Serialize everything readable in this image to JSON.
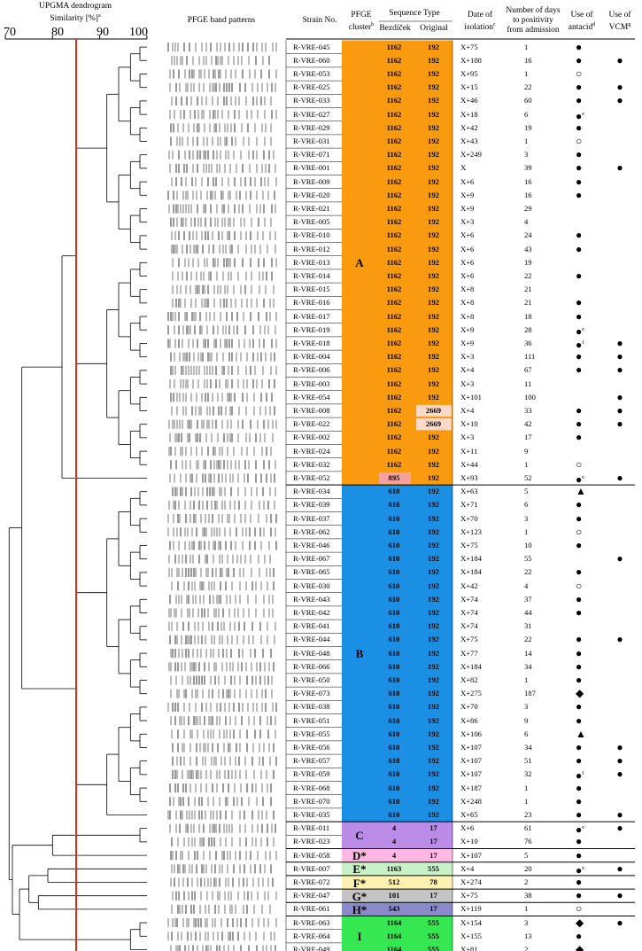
{
  "header": {
    "dendrogram_title": "UPGMA dendrogram",
    "similarity_label": "Similarity [%]",
    "similarity_sup": "a",
    "axis_ticks": [
      "70",
      "80",
      "90",
      "100"
    ],
    "pfge_bands": "PFGE band patterns",
    "strain_no": "Strain No.",
    "pfge_cluster_line1": "PFGE",
    "pfge_cluster_line2": "cluster",
    "pfge_cluster_sup": "b",
    "sequence_type": "Sequence Type",
    "bezdicek": "Bezdíček",
    "original": "Original",
    "date_line1": "Date of",
    "date_line2": "isolation",
    "date_sup": "c",
    "days_line1": "Number of days",
    "days_line2": "to positivity",
    "days_line3": "from admission",
    "antacid_line1": "Use of",
    "antacid_line2": "antacid",
    "antacid_sup": "d",
    "vcm_line1": "Use of",
    "vcm_line2": "VCM",
    "vcm_sup": "g"
  },
  "colors": {
    "A": "#f99a0f",
    "B": "#1a8fe3",
    "C": "#bb8be8",
    "D": "#ffb8e3",
    "E": "#c8f1c8",
    "F": "#fff2b0",
    "G": "#c4c4c4",
    "H": "#8a8acb",
    "I": "#35e851",
    "ST895": "#f6a0a0",
    "ST2669": "#ffd9c7",
    "cutoff_line": "#e02a1a"
  },
  "clusters": [
    {
      "label": "A",
      "color_key": "A"
    },
    {
      "label": "B",
      "color_key": "B"
    },
    {
      "label": "C",
      "color_key": "C"
    },
    {
      "label": "D*",
      "color_key": "D"
    },
    {
      "label": "E*",
      "color_key": "E"
    },
    {
      "label": "F*",
      "color_key": "F"
    },
    {
      "label": "G*",
      "color_key": "G"
    },
    {
      "label": "H*",
      "color_key": "H"
    },
    {
      "label": "I",
      "color_key": "I"
    }
  ],
  "rows": [
    {
      "strain": "R-VRE-045",
      "cluster": "A",
      "bez": "1162",
      "orig": "192",
      "date": "X+75",
      "days": "1",
      "antacid": "●",
      "antacid_sup": "",
      "vcm": ""
    },
    {
      "strain": "R-VRE-060",
      "cluster": "A",
      "bez": "1162",
      "orig": "192",
      "date": "X+108",
      "days": "16",
      "antacid": "●",
      "antacid_sup": "",
      "vcm": "●"
    },
    {
      "strain": "R-VRE-053",
      "cluster": "A",
      "bez": "1162",
      "orig": "192",
      "date": "X+95",
      "days": "1",
      "antacid": "○",
      "antacid_sup": "",
      "vcm": ""
    },
    {
      "strain": "R-VRE-025",
      "cluster": "A",
      "bez": "1162",
      "orig": "192",
      "date": "X+15",
      "days": "22",
      "antacid": "●",
      "antacid_sup": "",
      "vcm": "●"
    },
    {
      "strain": "R-VRE-033",
      "cluster": "A",
      "bez": "1162",
      "orig": "192",
      "date": "X+46",
      "days": "60",
      "antacid": "●",
      "antacid_sup": "",
      "vcm": "●"
    },
    {
      "strain": "R-VRE-027",
      "cluster": "A",
      "bez": "1162",
      "orig": "192",
      "date": "X+18",
      "days": "6",
      "antacid": "●",
      "antacid_sup": "e",
      "vcm": ""
    },
    {
      "strain": "R-VRE-029",
      "cluster": "A",
      "bez": "1162",
      "orig": "192",
      "date": "X+42",
      "days": "19",
      "antacid": "●",
      "antacid_sup": "",
      "vcm": ""
    },
    {
      "strain": "R-VRE-031",
      "cluster": "A",
      "bez": "1162",
      "orig": "192",
      "date": "X+43",
      "days": "1",
      "antacid": "○",
      "antacid_sup": "",
      "vcm": ""
    },
    {
      "strain": "R-VRE-071",
      "cluster": "A",
      "bez": "1162",
      "orig": "192",
      "date": "X+249",
      "days": "3",
      "antacid": "●",
      "antacid_sup": "",
      "vcm": ""
    },
    {
      "strain": "R-VRE-001",
      "cluster": "A",
      "bez": "1162",
      "orig": "192",
      "date": "X",
      "days": "39",
      "antacid": "●",
      "antacid_sup": "",
      "vcm": "●"
    },
    {
      "strain": "R-VRE-009",
      "cluster": "A",
      "bez": "1162",
      "orig": "192",
      "date": "X+6",
      "days": "16",
      "antacid": "●",
      "antacid_sup": "",
      "vcm": ""
    },
    {
      "strain": "R-VRE-020",
      "cluster": "A",
      "bez": "1162",
      "orig": "192",
      "date": "X+9",
      "days": "16",
      "antacid": "●",
      "antacid_sup": "",
      "vcm": ""
    },
    {
      "strain": "R-VRE-021",
      "cluster": "A",
      "bez": "1162",
      "orig": "192",
      "date": "X+9",
      "days": "29",
      "antacid": "",
      "antacid_sup": "",
      "vcm": ""
    },
    {
      "strain": "R-VRE-005",
      "cluster": "A",
      "bez": "1162",
      "orig": "192",
      "date": "X+3",
      "days": "4",
      "antacid": "",
      "antacid_sup": "",
      "vcm": ""
    },
    {
      "strain": "R-VRE-010",
      "cluster": "A",
      "bez": "1162",
      "orig": "192",
      "date": "X+6",
      "days": "24",
      "antacid": "●",
      "antacid_sup": "",
      "vcm": ""
    },
    {
      "strain": "R-VRE-012",
      "cluster": "A",
      "bez": "1162",
      "orig": "192",
      "date": "X+6",
      "days": "43",
      "antacid": "●",
      "antacid_sup": "",
      "vcm": ""
    },
    {
      "strain": "R-VRE-013",
      "cluster": "A",
      "bez": "1162",
      "orig": "192",
      "date": "X+6",
      "days": "19",
      "antacid": "",
      "antacid_sup": "",
      "vcm": ""
    },
    {
      "strain": "R-VRE-014",
      "cluster": "A",
      "bez": "1162",
      "orig": "192",
      "date": "X+6",
      "days": "22",
      "antacid": "●",
      "antacid_sup": "",
      "vcm": ""
    },
    {
      "strain": "R-VRE-015",
      "cluster": "A",
      "bez": "1162",
      "orig": "192",
      "date": "X+8",
      "days": "21",
      "antacid": "",
      "antacid_sup": "",
      "vcm": ""
    },
    {
      "strain": "R-VRE-016",
      "cluster": "A",
      "bez": "1162",
      "orig": "192",
      "date": "X+8",
      "days": "21",
      "antacid": "●",
      "antacid_sup": "",
      "vcm": ""
    },
    {
      "strain": "R-VRE-017",
      "cluster": "A",
      "bez": "1162",
      "orig": "192",
      "date": "X+8",
      "days": "18",
      "antacid": "●",
      "antacid_sup": "",
      "vcm": ""
    },
    {
      "strain": "R-VRE-019",
      "cluster": "A",
      "bez": "1162",
      "orig": "192",
      "date": "X+9",
      "days": "28",
      "antacid": "●",
      "antacid_sup": "e",
      "vcm": ""
    },
    {
      "strain": "R-VRE-018",
      "cluster": "A",
      "bez": "1162",
      "orig": "192",
      "date": "X+9",
      "days": "36",
      "antacid": "●",
      "antacid_sup": "f",
      "vcm": "●"
    },
    {
      "strain": "R-VRE-004",
      "cluster": "A",
      "bez": "1162",
      "orig": "192",
      "date": "X+3",
      "days": "111",
      "antacid": "●",
      "antacid_sup": "",
      "vcm": "●"
    },
    {
      "strain": "R-VRE-006",
      "cluster": "A",
      "bez": "1162",
      "orig": "192",
      "date": "X+4",
      "days": "67",
      "antacid": "●",
      "antacid_sup": "",
      "vcm": "●"
    },
    {
      "strain": "R-VRE-003",
      "cluster": "A",
      "bez": "1162",
      "orig": "192",
      "date": "X+3",
      "days": "11",
      "antacid": "",
      "antacid_sup": "",
      "vcm": ""
    },
    {
      "strain": "R-VRE-054",
      "cluster": "A",
      "bez": "1162",
      "orig": "192",
      "date": "X+101",
      "days": "100",
      "antacid": "",
      "antacid_sup": "",
      "vcm": "●"
    },
    {
      "strain": "R-VRE-008",
      "cluster": "A",
      "bez": "1162",
      "orig": "2669",
      "date": "X+4",
      "days": "33",
      "antacid": "●",
      "antacid_sup": "",
      "vcm": "●"
    },
    {
      "strain": "R-VRE-022",
      "cluster": "A",
      "bez": "1162",
      "orig": "2669",
      "date": "X+10",
      "days": "42",
      "antacid": "●",
      "antacid_sup": "",
      "vcm": "●"
    },
    {
      "strain": "R-VRE-002",
      "cluster": "A",
      "bez": "1162",
      "orig": "192",
      "date": "X+3",
      "days": "17",
      "antacid": "●",
      "antacid_sup": "",
      "vcm": ""
    },
    {
      "strain": "R-VRE-024",
      "cluster": "A",
      "bez": "1162",
      "orig": "192",
      "date": "X+11",
      "days": "9",
      "antacid": "",
      "antacid_sup": "",
      "vcm": ""
    },
    {
      "strain": "R-VRE-032",
      "cluster": "A",
      "bez": "1162",
      "orig": "192",
      "date": "X+44",
      "days": "1",
      "antacid": "○",
      "antacid_sup": "",
      "vcm": ""
    },
    {
      "strain": "R-VRE-052",
      "cluster": "A",
      "bez": "895",
      "orig": "192",
      "date": "X+93",
      "days": "52",
      "antacid": "●",
      "antacid_sup": "e",
      "vcm": "●"
    },
    {
      "strain": "R-VRE-034",
      "cluster": "B",
      "bez": "610",
      "orig": "192",
      "date": "X+63",
      "days": "5",
      "antacid": "▲",
      "antacid_sup": "",
      "vcm": ""
    },
    {
      "strain": "R-VRE-039",
      "cluster": "B",
      "bez": "610",
      "orig": "192",
      "date": "X+71",
      "days": "6",
      "antacid": "●",
      "antacid_sup": "",
      "vcm": ""
    },
    {
      "strain": "R-VRE-037",
      "cluster": "B",
      "bez": "610",
      "orig": "192",
      "date": "X+70",
      "days": "3",
      "antacid": "●",
      "antacid_sup": "",
      "vcm": ""
    },
    {
      "strain": "R-VRE-062",
      "cluster": "B",
      "bez": "610",
      "orig": "192",
      "date": "X+123",
      "days": "1",
      "antacid": "○",
      "antacid_sup": "",
      "vcm": ""
    },
    {
      "strain": "R-VRE-046",
      "cluster": "B",
      "bez": "610",
      "orig": "192",
      "date": "X+75",
      "days": "10",
      "antacid": "●",
      "antacid_sup": "",
      "vcm": ""
    },
    {
      "strain": "R-VRE-067",
      "cluster": "B",
      "bez": "610",
      "orig": "192",
      "date": "X+184",
      "days": "55",
      "antacid": "",
      "antacid_sup": "",
      "vcm": "●"
    },
    {
      "strain": "R-VRE-065",
      "cluster": "B",
      "bez": "610",
      "orig": "192",
      "date": "X+184",
      "days": "22",
      "antacid": "●",
      "antacid_sup": "",
      "vcm": ""
    },
    {
      "strain": "R-VRE-030",
      "cluster": "B",
      "bez": "610",
      "orig": "192",
      "date": "X+42",
      "days": "4",
      "antacid": "○",
      "antacid_sup": "",
      "vcm": ""
    },
    {
      "strain": "R-VRE-043",
      "cluster": "B",
      "bez": "610",
      "orig": "192",
      "date": "X+74",
      "days": "37",
      "antacid": "●",
      "antacid_sup": "",
      "vcm": ""
    },
    {
      "strain": "R-VRE-042",
      "cluster": "B",
      "bez": "610",
      "orig": "192",
      "date": "X+74",
      "days": "44",
      "antacid": "●",
      "antacid_sup": "",
      "vcm": ""
    },
    {
      "strain": "R-VRE-041",
      "cluster": "B",
      "bez": "610",
      "orig": "192",
      "date": "X+74",
      "days": "31",
      "antacid": "",
      "antacid_sup": "",
      "vcm": ""
    },
    {
      "strain": "R-VRE-044",
      "cluster": "B",
      "bez": "610",
      "orig": "192",
      "date": "X+75",
      "days": "22",
      "antacid": "●",
      "antacid_sup": "",
      "vcm": "●"
    },
    {
      "strain": "R-VRE-048",
      "cluster": "B",
      "bez": "610",
      "orig": "192",
      "date": "X+77",
      "days": "14",
      "antacid": "●",
      "antacid_sup": "",
      "vcm": ""
    },
    {
      "strain": "R-VRE-066",
      "cluster": "B",
      "bez": "610",
      "orig": "192",
      "date": "X+184",
      "days": "34",
      "antacid": "●",
      "antacid_sup": "",
      "vcm": ""
    },
    {
      "strain": "R-VRE-050",
      "cluster": "B",
      "bez": "610",
      "orig": "192",
      "date": "X+82",
      "days": "1",
      "antacid": "●",
      "antacid_sup": "",
      "vcm": ""
    },
    {
      "strain": "R-VRE-073",
      "cluster": "B",
      "bez": "610",
      "orig": "192",
      "date": "X+275",
      "days": "187",
      "antacid": "◆",
      "antacid_sup": "",
      "vcm": ""
    },
    {
      "strain": "R-VRE-038",
      "cluster": "B",
      "bez": "610",
      "orig": "192",
      "date": "X+70",
      "days": "3",
      "antacid": "●",
      "antacid_sup": "",
      "vcm": ""
    },
    {
      "strain": "R-VRE-051",
      "cluster": "B",
      "bez": "610",
      "orig": "192",
      "date": "X+86",
      "days": "9",
      "antacid": "●",
      "antacid_sup": "",
      "vcm": ""
    },
    {
      "strain": "R-VRE-055",
      "cluster": "B",
      "bez": "610",
      "orig": "192",
      "date": "X+106",
      "days": "6",
      "antacid": "▲",
      "antacid_sup": "",
      "vcm": ""
    },
    {
      "strain": "R-VRE-056",
      "cluster": "B",
      "bez": "610",
      "orig": "192",
      "date": "X+107",
      "days": "34",
      "antacid": "●",
      "antacid_sup": "",
      "vcm": "●"
    },
    {
      "strain": "R-VRE-057",
      "cluster": "B",
      "bez": "610",
      "orig": "192",
      "date": "X+107",
      "days": "51",
      "antacid": "●",
      "antacid_sup": "",
      "vcm": "●"
    },
    {
      "strain": "R-VRE-059",
      "cluster": "B",
      "bez": "610",
      "orig": "192",
      "date": "X+107",
      "days": "32",
      "antacid": "●",
      "antacid_sup": "f",
      "vcm": "●"
    },
    {
      "strain": "R-VRE-068",
      "cluster": "B",
      "bez": "610",
      "orig": "192",
      "date": "X+187",
      "days": "1",
      "antacid": "●",
      "antacid_sup": "",
      "vcm": ""
    },
    {
      "strain": "R-VRE-070",
      "cluster": "B",
      "bez": "610",
      "orig": "192",
      "date": "X+248",
      "days": "1",
      "antacid": "●",
      "antacid_sup": "",
      "vcm": ""
    },
    {
      "strain": "R-VRE-035",
      "cluster": "B",
      "bez": "610",
      "orig": "192",
      "date": "X+65",
      "days": "23",
      "antacid": "●",
      "antacid_sup": "",
      "vcm": "●"
    },
    {
      "strain": "R-VRE-011",
      "cluster": "C",
      "bez": "4",
      "orig": "17",
      "date": "X+6",
      "days": "61",
      "antacid": "●",
      "antacid_sup": "e",
      "vcm": "●"
    },
    {
      "strain": "R-VRE-023",
      "cluster": "C",
      "bez": "4",
      "orig": "17",
      "date": "X+10",
      "days": "76",
      "antacid": "●",
      "antacid_sup": "",
      "vcm": ""
    },
    {
      "strain": "R-VRE-058",
      "cluster": "D*",
      "bez": "4",
      "orig": "17",
      "date": "X+107",
      "days": "5",
      "antacid": "●",
      "antacid_sup": "",
      "vcm": ""
    },
    {
      "strain": "R-VRE-007",
      "cluster": "E*",
      "bez": "1163",
      "orig": "555",
      "date": "X+4",
      "days": "20",
      "antacid": "●",
      "antacid_sup": "e",
      "vcm": "●"
    },
    {
      "strain": "R-VRE-072",
      "cluster": "F*",
      "bez": "512",
      "orig": "78",
      "date": "X+274",
      "days": "2",
      "antacid": "●",
      "antacid_sup": "",
      "vcm": ""
    },
    {
      "strain": "R-VRE-047",
      "cluster": "G*",
      "bez": "101",
      "orig": "17",
      "date": "X+75",
      "days": "38",
      "antacid": "●",
      "antacid_sup": "",
      "vcm": "●"
    },
    {
      "strain": "R-VRE-061",
      "cluster": "H*",
      "bez": "543",
      "orig": "17",
      "date": "X+119",
      "days": "1",
      "antacid": "○",
      "antacid_sup": "",
      "vcm": ""
    },
    {
      "strain": "R-VRE-063",
      "cluster": "I",
      "bez": "1164",
      "orig": "555",
      "date": "X+154",
      "days": "3",
      "antacid": "◆",
      "antacid_sup": "",
      "vcm": "●"
    },
    {
      "strain": "R-VRE-064",
      "cluster": "I",
      "bez": "1164",
      "orig": "555",
      "date": "X+155",
      "days": "13",
      "antacid": "●",
      "antacid_sup": "",
      "vcm": ""
    },
    {
      "strain": "R-VRE-049",
      "cluster": "I",
      "bez": "1164",
      "orig": "555",
      "date": "X+81",
      "days": "2",
      "antacid": "◆",
      "antacid_sup": "",
      "vcm": ""
    }
  ]
}
